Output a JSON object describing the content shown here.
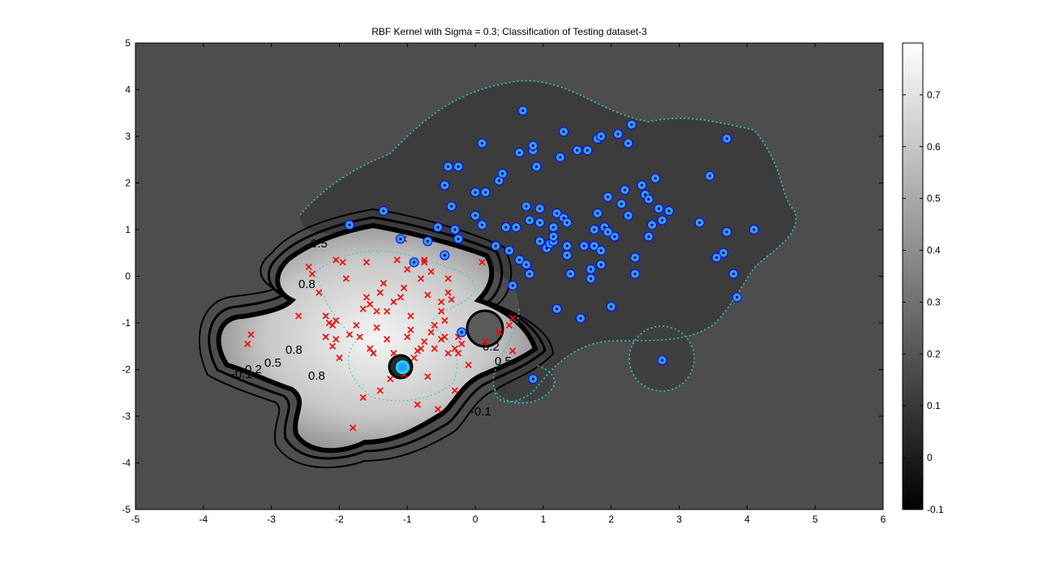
{
  "chart_data": {
    "type": "scatter",
    "title": "RBF Kernel with Sigma = 0.3; Classification of Testing dataset-3",
    "xlabel": "",
    "ylabel": "",
    "xlim": [
      -5,
      6
    ],
    "ylim": [
      -5,
      5
    ],
    "xticks": [
      -5,
      -4,
      -3,
      -2,
      -1,
      0,
      1,
      2,
      3,
      4,
      5,
      6
    ],
    "yticks": [
      -5,
      -4,
      -3,
      -2,
      -1,
      0,
      1,
      2,
      3,
      4,
      5
    ],
    "grid": false,
    "background_value": 0.2,
    "colorbar": {
      "colormap": "gray",
      "range": [
        -0.1,
        0.8
      ],
      "ticks": [
        -0.1,
        0,
        0.1,
        0.2,
        0.3,
        0.4,
        0.5,
        0.6,
        0.7
      ]
    },
    "contour_labels": [
      "0.5",
      "0.8",
      "0.8",
      "0.5",
      "0.2",
      "-0.1",
      "0.8",
      "0.2",
      "0.5",
      "-0.1"
    ],
    "series": [
      {
        "marker": "x",
        "color": "#ff0000",
        "points": [
          [
            -3.3,
            -1.25
          ],
          [
            -3.35,
            -1.45
          ],
          [
            -2.6,
            -0.85
          ],
          [
            -2.45,
            0.2
          ],
          [
            -2.4,
            0.05
          ],
          [
            -2.3,
            -0.35
          ],
          [
            -2.2,
            -0.85
          ],
          [
            -2.15,
            -1.0
          ],
          [
            -2.2,
            -1.3
          ],
          [
            -2.05,
            -0.95
          ],
          [
            -2.1,
            -1.5
          ],
          [
            -2.1,
            -1.05
          ],
          [
            -2.05,
            0.35
          ],
          [
            -2.05,
            -1.35
          ],
          [
            -2.0,
            -1.75
          ],
          [
            -1.95,
            0.3
          ],
          [
            -1.9,
            -0.05
          ],
          [
            -1.85,
            -1.25
          ],
          [
            -1.8,
            -3.25
          ],
          [
            -1.75,
            -1.05
          ],
          [
            -1.7,
            -1.3
          ],
          [
            -1.65,
            -0.7
          ],
          [
            -1.65,
            -2.6
          ],
          [
            -1.6,
            -0.45
          ],
          [
            -1.6,
            0.3
          ],
          [
            -1.55,
            -0.6
          ],
          [
            -1.55,
            -1.55
          ],
          [
            -1.5,
            -1.65
          ],
          [
            -1.45,
            -0.75
          ],
          [
            -1.45,
            -1.1
          ],
          [
            -1.4,
            -2.45
          ],
          [
            -1.4,
            -0.35
          ],
          [
            -1.35,
            -0.15
          ],
          [
            -1.3,
            -0.75
          ],
          [
            -1.3,
            -1.35
          ],
          [
            -1.25,
            -2.2
          ],
          [
            -1.2,
            -1.65
          ],
          [
            -1.2,
            -0.55
          ],
          [
            -1.15,
            0.35
          ],
          [
            -1.1,
            -0.45
          ],
          [
            -1.05,
            -2.1
          ],
          [
            -1.05,
            -0.25
          ],
          [
            -1.0,
            -1.3
          ],
          [
            -1.0,
            0.15
          ],
          [
            -0.95,
            -0.85
          ],
          [
            -0.95,
            -1.15
          ],
          [
            -0.9,
            -1.75
          ],
          [
            -0.85,
            -1.6
          ],
          [
            -0.85,
            -2.75
          ],
          [
            -0.8,
            -0.05
          ],
          [
            -0.8,
            -1.55
          ],
          [
            -0.75,
            0.35
          ],
          [
            -0.75,
            -1.4
          ],
          [
            -0.7,
            -2.15
          ],
          [
            -0.7,
            -0.4
          ],
          [
            -0.65,
            0.1
          ],
          [
            -0.65,
            -1.2
          ],
          [
            -0.6,
            -1.05
          ],
          [
            -0.6,
            -1.55
          ],
          [
            -0.55,
            -2.85
          ],
          [
            -0.5,
            -1.35
          ],
          [
            -0.5,
            -0.75
          ],
          [
            -0.5,
            -0.55
          ],
          [
            -0.45,
            -0.95
          ],
          [
            -0.45,
            -1.3
          ],
          [
            -0.4,
            -1.65
          ],
          [
            -0.4,
            -0.35
          ],
          [
            -0.4,
            -0.05
          ],
          [
            -0.35,
            -0.5
          ],
          [
            -0.3,
            -1.55
          ],
          [
            -0.25,
            -1.65
          ],
          [
            -0.3,
            -2.45
          ],
          [
            -0.25,
            -1.3
          ],
          [
            -0.2,
            -1.45
          ],
          [
            -0.1,
            -1.9
          ],
          [
            0.15,
            -1.4
          ],
          [
            0.35,
            -1.2
          ],
          [
            0.55,
            -1.6
          ],
          [
            0.5,
            -1.05
          ],
          [
            0.55,
            -0.9
          ],
          [
            0.1,
            0.3
          ],
          [
            -1.05,
            0.8
          ],
          [
            -0.75,
            0.3
          ]
        ]
      },
      {
        "marker": "o",
        "color": "#3399ff",
        "points": [
          [
            -1.85,
            1.1
          ],
          [
            -1.35,
            1.4
          ],
          [
            -1.1,
            0.8
          ],
          [
            -0.9,
            0.3
          ],
          [
            -0.7,
            0.75
          ],
          [
            -0.55,
            1.05
          ],
          [
            -0.45,
            1.95
          ],
          [
            -0.4,
            2.35
          ],
          [
            -0.35,
            1.5
          ],
          [
            -0.3,
            1.0
          ],
          [
            -0.25,
            2.35
          ],
          [
            -0.25,
            0.8
          ],
          [
            -0.45,
            0.45
          ],
          [
            -0.2,
            -1.2
          ],
          [
            0.0,
            1.3
          ],
          [
            0.0,
            1.8
          ],
          [
            0.1,
            2.85
          ],
          [
            0.15,
            1.8
          ],
          [
            0.1,
            1.1
          ],
          [
            0.3,
            0.65
          ],
          [
            0.35,
            2.05
          ],
          [
            0.4,
            2.2
          ],
          [
            0.45,
            1.05
          ],
          [
            0.5,
            0.55
          ],
          [
            0.55,
            -0.2
          ],
          [
            0.6,
            1.05
          ],
          [
            0.65,
            0.35
          ],
          [
            0.65,
            2.65
          ],
          [
            0.7,
            3.55
          ],
          [
            0.75,
            1.5
          ],
          [
            0.75,
            0.25
          ],
          [
            0.8,
            1.2
          ],
          [
            0.8,
            0.05
          ],
          [
            0.85,
            2.7
          ],
          [
            0.85,
            2.8
          ],
          [
            0.9,
            2.35
          ],
          [
            0.95,
            1.45
          ],
          [
            0.95,
            0.75
          ],
          [
            0.95,
            1.15
          ],
          [
            1.05,
            0.6
          ],
          [
            1.1,
            0.7
          ],
          [
            1.15,
            0.75
          ],
          [
            1.15,
            1.05
          ],
          [
            1.15,
            0.85
          ],
          [
            1.2,
            1.35
          ],
          [
            1.25,
            2.55
          ],
          [
            1.3,
            3.1
          ],
          [
            1.3,
            1.25
          ],
          [
            1.35,
            1.15
          ],
          [
            1.35,
            0.65
          ],
          [
            1.35,
            0.45
          ],
          [
            1.4,
            0.05
          ],
          [
            1.5,
            2.7
          ],
          [
            1.6,
            0.65
          ],
          [
            1.65,
            2.7
          ],
          [
            1.7,
            0.15
          ],
          [
            1.7,
            -0.05
          ],
          [
            1.75,
            1.0
          ],
          [
            1.75,
            0.65
          ],
          [
            1.8,
            2.95
          ],
          [
            1.85,
            0.25
          ],
          [
            1.85,
            0.55
          ],
          [
            1.9,
            1.05
          ],
          [
            1.95,
            1.7
          ],
          [
            2.0,
            -0.65
          ],
          [
            2.05,
            0.85
          ],
          [
            2.15,
            1.55
          ],
          [
            2.2,
            1.85
          ],
          [
            2.25,
            1.3
          ],
          [
            2.25,
            2.85
          ],
          [
            2.3,
            3.25
          ],
          [
            2.35,
            0.4
          ],
          [
            2.35,
            0.05
          ],
          [
            2.45,
            1.95
          ],
          [
            2.5,
            1.75
          ],
          [
            2.55,
            0.85
          ],
          [
            2.55,
            1.65
          ],
          [
            2.6,
            1.1
          ],
          [
            2.65,
            2.1
          ],
          [
            2.7,
            1.45
          ],
          [
            2.75,
            1.2
          ],
          [
            2.75,
            -1.8
          ],
          [
            2.85,
            1.4
          ],
          [
            3.3,
            1.15
          ],
          [
            3.45,
            2.15
          ],
          [
            3.65,
            0.5
          ],
          [
            3.55,
            0.4
          ],
          [
            3.7,
            2.95
          ],
          [
            3.7,
            0.95
          ],
          [
            3.8,
            0.05
          ],
          [
            3.85,
            -0.45
          ],
          [
            4.1,
            1.0
          ],
          [
            1.2,
            -0.7
          ],
          [
            1.55,
            -0.9
          ],
          [
            0.85,
            -2.2
          ],
          [
            2.1,
            3.05
          ],
          [
            1.85,
            3.0
          ],
          [
            1.95,
            0.95
          ],
          [
            1.8,
            1.35
          ]
        ]
      }
    ]
  }
}
